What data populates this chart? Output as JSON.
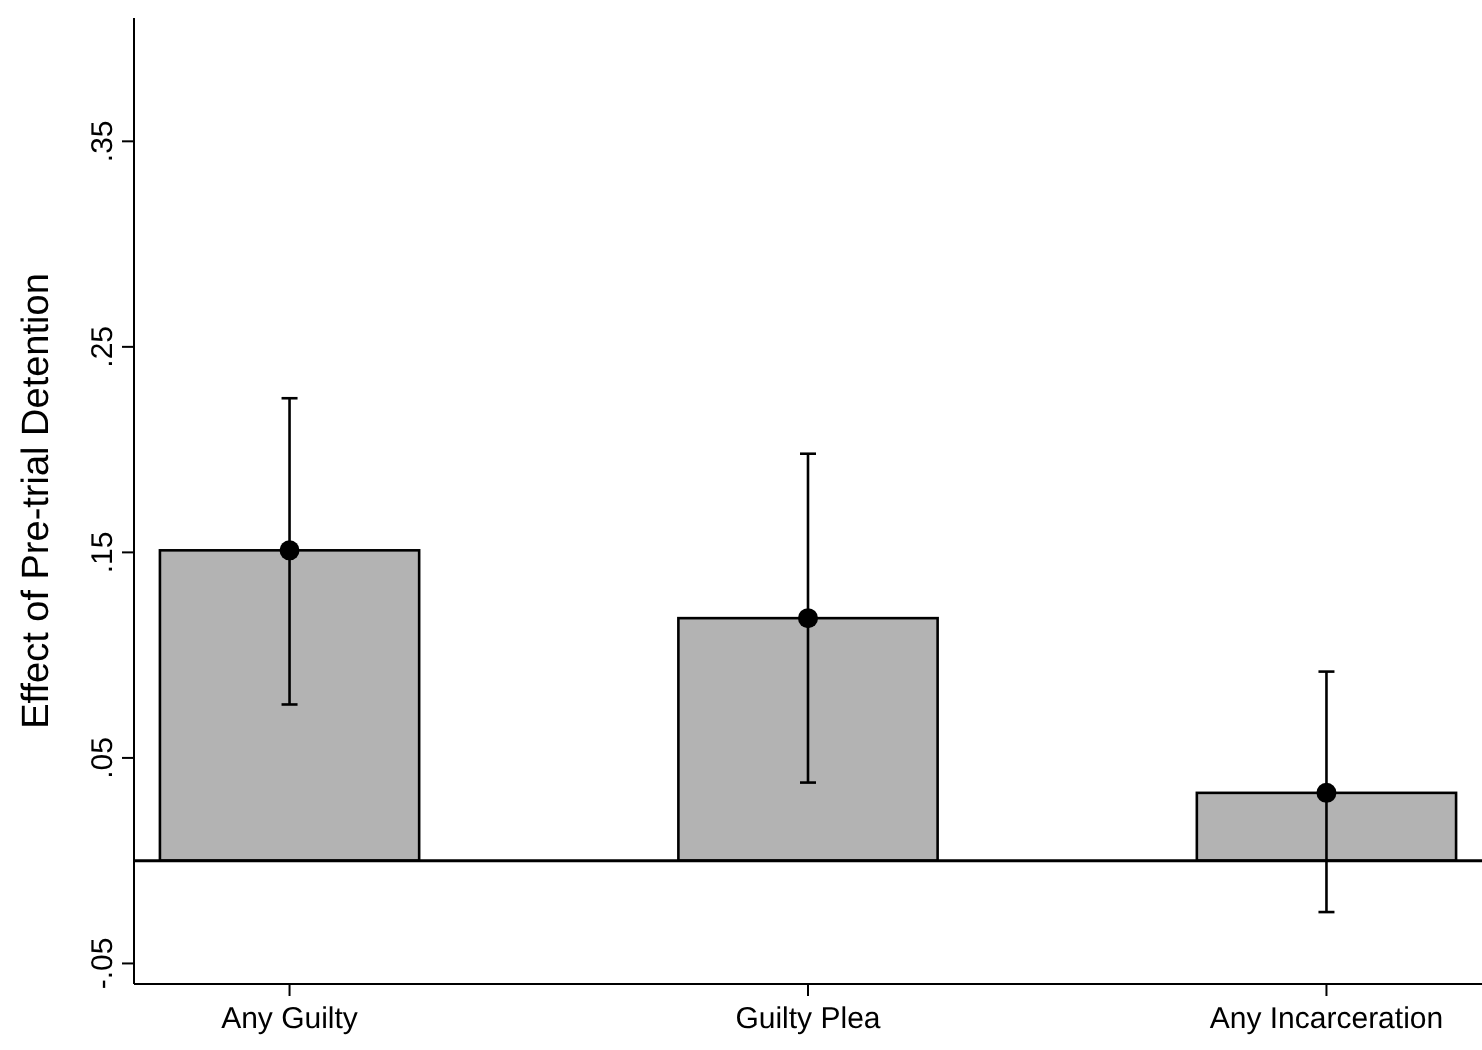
{
  "chart_data": {
    "type": "bar",
    "ylabel": "Effect of Pre-trial Detention",
    "categories": [
      "Any Guilty",
      "Guilty Plea",
      "Any Incarceration"
    ],
    "series": [
      {
        "color": "#b3b3b3",
        "values": [
          0.151,
          0.118,
          0.033
        ]
      },
      {
        "type": "scatter",
        "color": "#000000",
        "values": [
          0.151,
          0.118,
          0.033
        ],
        "errors": [
          [
            0.076,
            0.225
          ],
          [
            0.038,
            0.198
          ],
          [
            -0.025,
            0.092
          ]
        ],
        "marker": "circle"
      }
    ],
    "ylim": [
      -0.06,
      0.41
    ],
    "yticks": [
      {
        "value": -0.05,
        "label": "-.05"
      },
      {
        "value": 0.05,
        "label": ".05"
      },
      {
        "value": 0.15,
        "label": ".15"
      },
      {
        "value": 0.25,
        "label": ".25"
      },
      {
        "value": 0.35,
        "label": ".35"
      }
    ],
    "ref_lines": [
      {
        "axis": "y",
        "value": 0,
        "color": "#000000"
      }
    ],
    "grid": false
  }
}
